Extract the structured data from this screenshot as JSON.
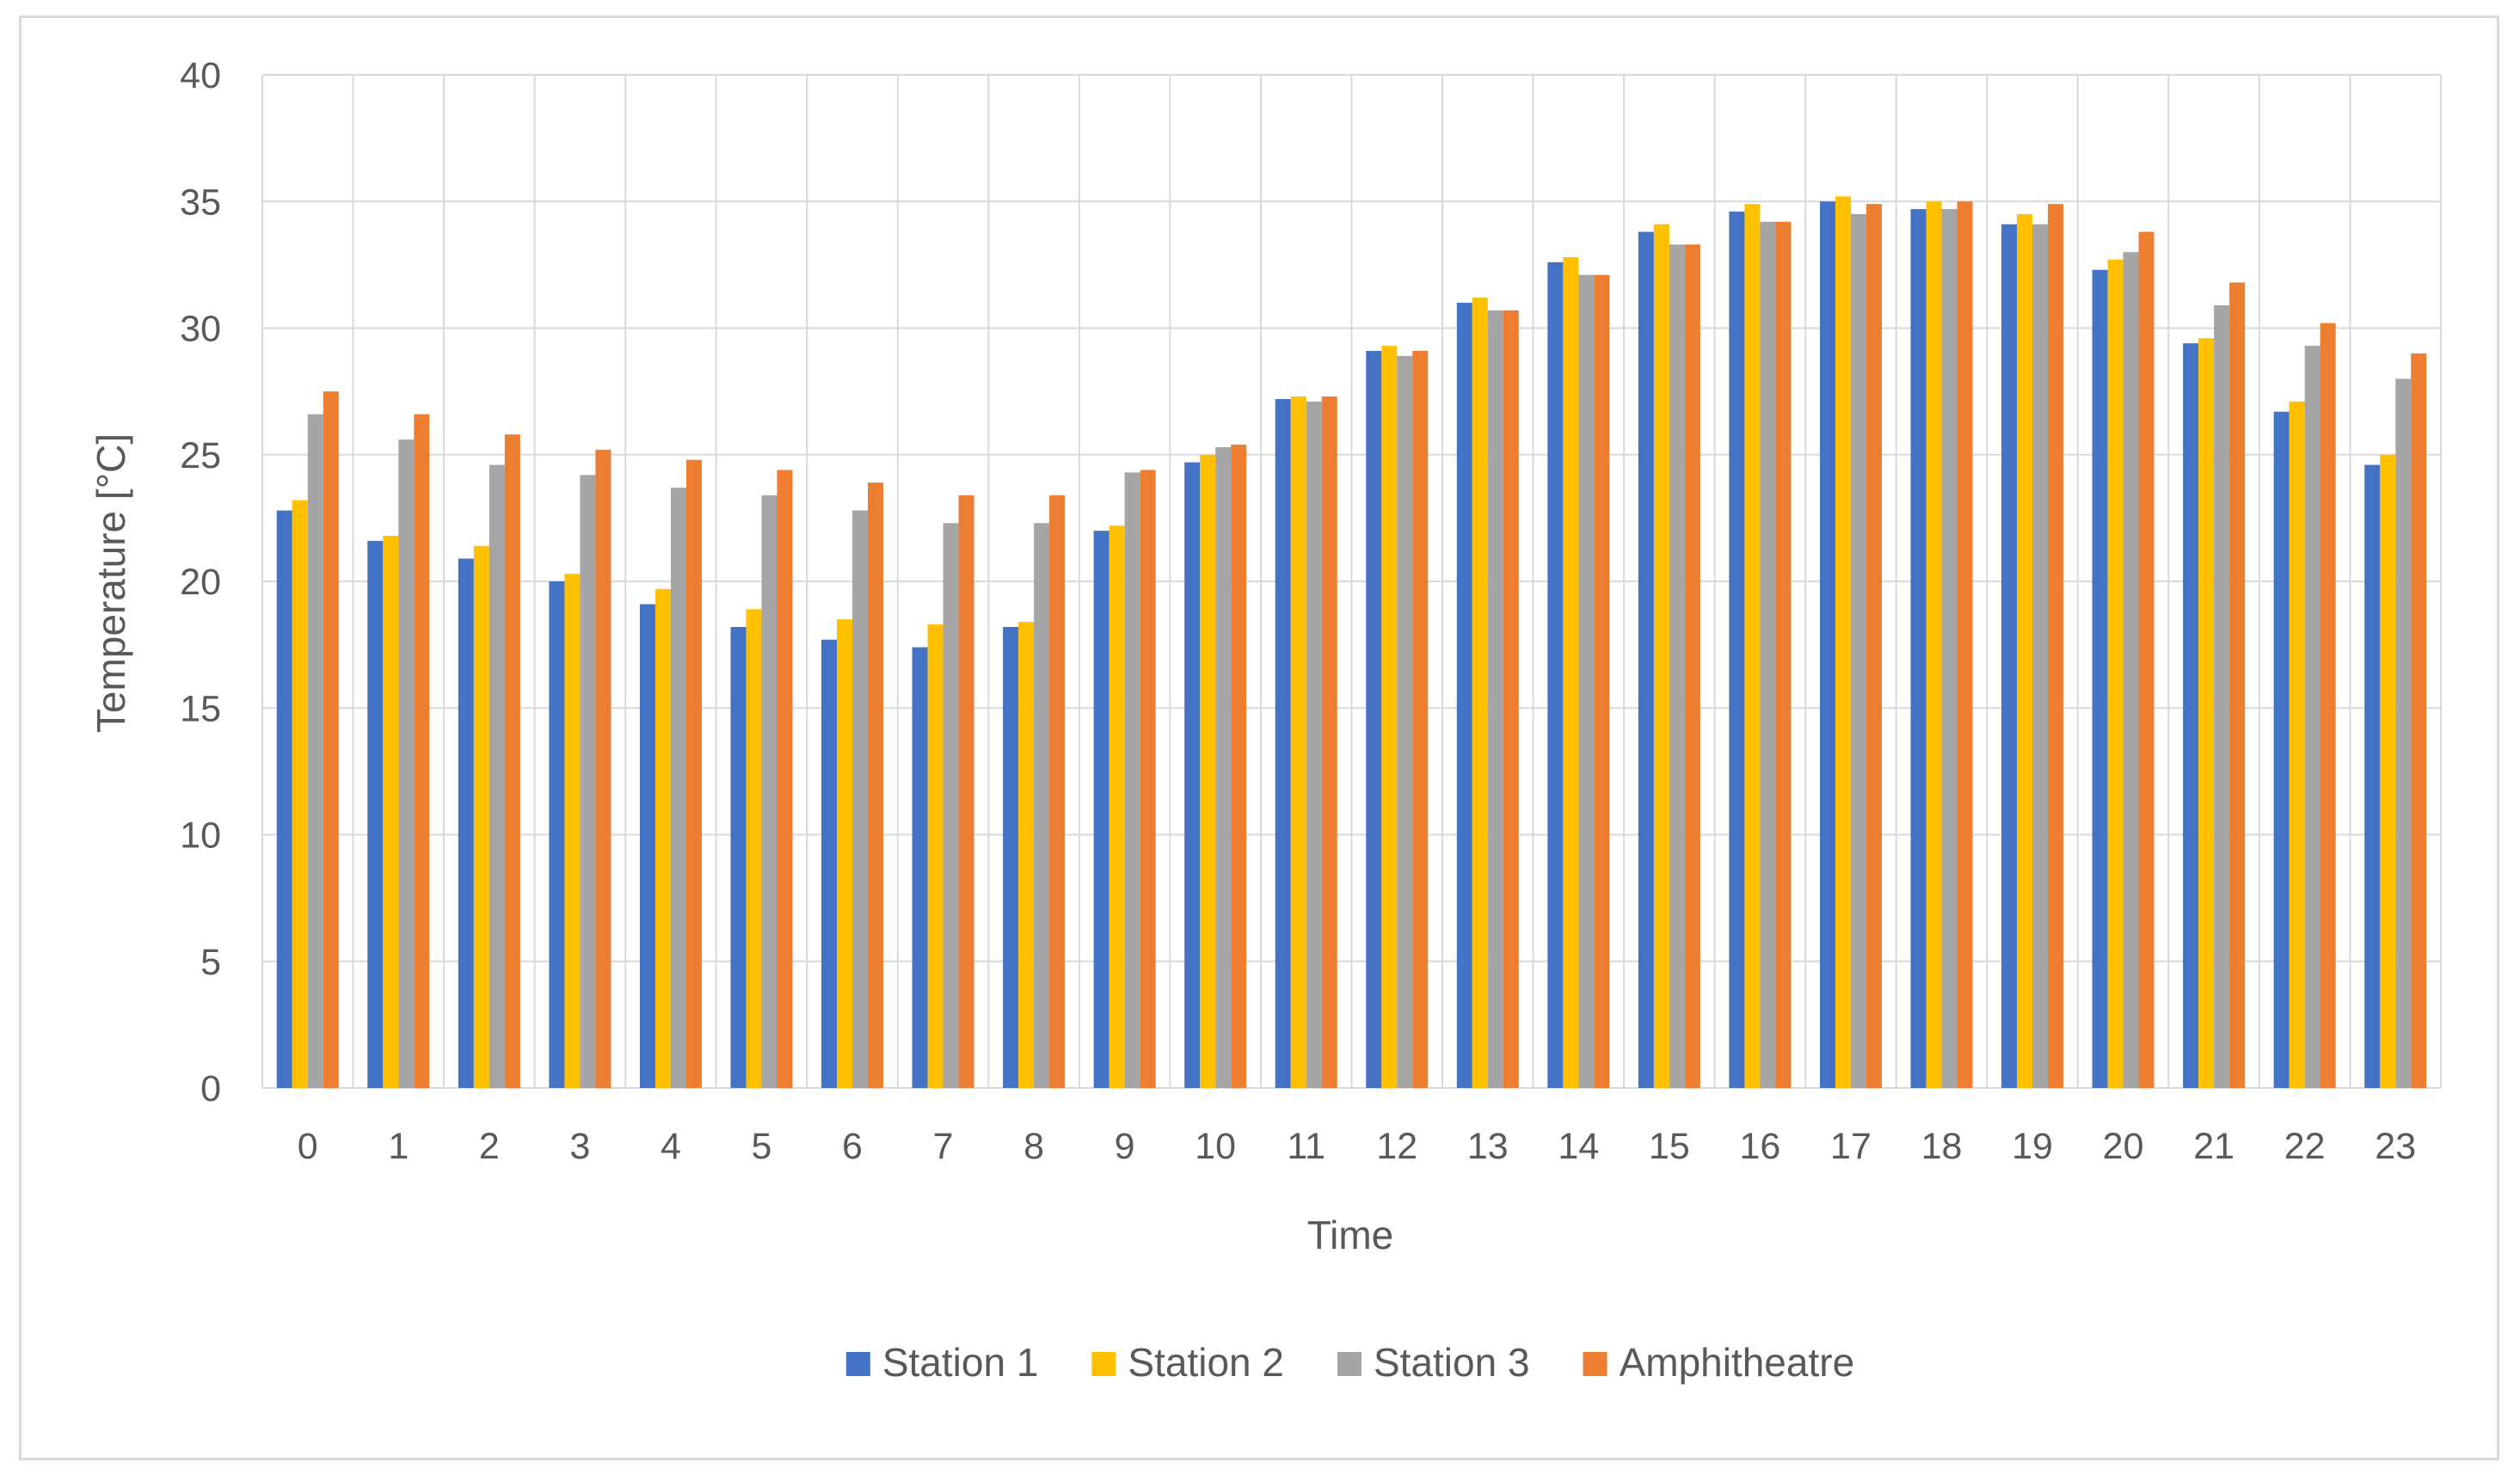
{
  "chart_data": {
    "type": "bar",
    "title": "",
    "xlabel": "Time",
    "ylabel": "Temperature [°C]",
    "ylim": [
      0,
      40
    ],
    "yticks": [
      0,
      5,
      10,
      15,
      20,
      25,
      30,
      35,
      40
    ],
    "grid": true,
    "legend_position": "bottom-center",
    "categories": [
      "0",
      "1",
      "2",
      "3",
      "4",
      "5",
      "6",
      "7",
      "8",
      "9",
      "10",
      "11",
      "12",
      "13",
      "14",
      "15",
      "16",
      "17",
      "18",
      "19",
      "20",
      "21",
      "22",
      "23"
    ],
    "series": [
      {
        "name": "Station 1",
        "color": "#4472c4",
        "values": [
          22.8,
          21.6,
          20.9,
          20.0,
          19.1,
          18.2,
          17.7,
          17.4,
          18.2,
          22.0,
          24.7,
          27.2,
          29.1,
          31.0,
          32.6,
          33.8,
          34.6,
          35.0,
          34.7,
          34.1,
          32.3,
          29.4,
          26.7,
          24.6
        ]
      },
      {
        "name": "Station 2",
        "color": "#ffc000",
        "values": [
          23.2,
          21.8,
          21.4,
          20.3,
          19.7,
          18.9,
          18.5,
          18.3,
          18.4,
          22.2,
          25.0,
          27.3,
          29.3,
          31.2,
          32.8,
          34.1,
          34.9,
          35.2,
          35.0,
          34.5,
          32.7,
          29.6,
          27.1,
          25.0
        ]
      },
      {
        "name": "Station 3",
        "color": "#a5a5a5",
        "values": [
          26.6,
          25.6,
          24.6,
          24.2,
          23.7,
          23.4,
          22.8,
          22.3,
          22.3,
          24.3,
          25.3,
          27.1,
          28.9,
          30.7,
          32.1,
          33.3,
          34.2,
          34.5,
          34.7,
          34.1,
          33.0,
          30.9,
          29.3,
          28.0
        ]
      },
      {
        "name": "Amphitheatre",
        "color": "#ed7d31",
        "values": [
          27.5,
          26.6,
          25.8,
          25.2,
          24.8,
          24.4,
          23.9,
          23.4,
          23.4,
          24.4,
          25.4,
          27.3,
          29.1,
          30.7,
          32.1,
          33.3,
          34.2,
          34.9,
          35.0,
          34.9,
          33.8,
          31.8,
          30.2,
          29.0
        ]
      }
    ]
  },
  "colors": {
    "gridline": "#d9d9d9",
    "text": "#595959",
    "frame": "#d9d9d9"
  }
}
